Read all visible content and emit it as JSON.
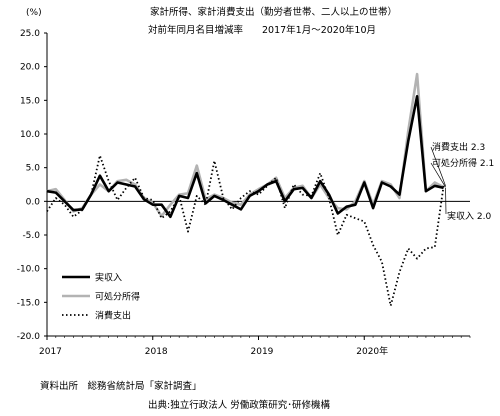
{
  "chart_data": {
    "type": "line",
    "title": "家計所得、家計消費支出（勤労者世帯、二人以上の世帯）",
    "subtitle": "対前年同月名目増減率　　2017年1月～2020年10月",
    "ylabel": "(%)",
    "ylim": [
      -20,
      25
    ],
    "yticks": [
      "25.0",
      "20.0",
      "15.0",
      "10.0",
      "5.0",
      "0.0",
      "-5.0",
      "-10.0",
      "-15.0",
      "-20.0"
    ],
    "xticks": [
      "2017",
      "2018",
      "2019",
      "2020年"
    ],
    "grid": false,
    "legend_position": "bottom-left",
    "x": [
      "2017-01",
      "2017-02",
      "2017-03",
      "2017-04",
      "2017-05",
      "2017-06",
      "2017-07",
      "2017-08",
      "2017-09",
      "2017-10",
      "2017-11",
      "2017-12",
      "2018-01",
      "2018-02",
      "2018-03",
      "2018-04",
      "2018-05",
      "2018-06",
      "2018-07",
      "2018-08",
      "2018-09",
      "2018-10",
      "2018-11",
      "2018-12",
      "2019-01",
      "2019-02",
      "2019-03",
      "2019-04",
      "2019-05",
      "2019-06",
      "2019-07",
      "2019-08",
      "2019-09",
      "2019-10",
      "2019-11",
      "2019-12",
      "2020-01",
      "2020-02",
      "2020-03",
      "2020-04",
      "2020-05",
      "2020-06",
      "2020-07",
      "2020-08",
      "2020-09",
      "2020-10"
    ],
    "series": [
      {
        "name": "実収入",
        "style": "solid-black",
        "values": [
          1.5,
          1.3,
          0.0,
          -1.3,
          -1.2,
          1.0,
          3.8,
          1.5,
          2.8,
          2.5,
          2.2,
          0.3,
          -0.5,
          -0.5,
          -2.3,
          0.8,
          0.5,
          4.2,
          -0.3,
          0.8,
          0.2,
          -0.5,
          -1.2,
          0.8,
          1.5,
          2.5,
          3.0,
          0.0,
          1.8,
          2.0,
          0.5,
          3.0,
          1.0,
          -1.8,
          -0.8,
          -0.5,
          2.8,
          -1.0,
          2.8,
          2.2,
          1.0,
          9.0,
          15.6,
          1.5,
          2.3,
          2.0
        ]
      },
      {
        "name": "可処分所得",
        "style": "solid-gray",
        "values": [
          1.5,
          1.8,
          0.2,
          -1.5,
          -1.0,
          1.0,
          2.5,
          1.5,
          3.0,
          3.2,
          2.5,
          0.5,
          -0.2,
          -2.2,
          -0.5,
          1.0,
          1.2,
          5.3,
          0.3,
          1.0,
          0.5,
          -0.2,
          -0.5,
          1.0,
          1.8,
          2.5,
          3.5,
          0.5,
          2.0,
          2.3,
          0.5,
          2.5,
          0.5,
          -1.0,
          -1.2,
          0.0,
          3.0,
          -0.5,
          3.0,
          2.5,
          0.5,
          10.5,
          18.9,
          1.5,
          2.8,
          2.1
        ]
      },
      {
        "name": "消費支出",
        "style": "dotted-black",
        "values": [
          -1.5,
          0.5,
          -0.5,
          -2.3,
          -1.3,
          1.0,
          6.8,
          3.0,
          0.2,
          2.0,
          3.5,
          0.5,
          0.2,
          -2.5,
          -1.5,
          0.8,
          -4.5,
          0.8,
          -0.5,
          6.0,
          0.5,
          -1.2,
          0.5,
          1.5,
          1.0,
          2.3,
          3.5,
          -1.0,
          2.5,
          1.0,
          0.8,
          4.2,
          0.5,
          -5.0,
          -2.0,
          -2.5,
          -3.0,
          -6.5,
          -9.0,
          -15.5,
          -10.5,
          -7.0,
          -8.5,
          -7.0,
          -6.8,
          2.3
        ]
      }
    ],
    "annotations": [
      "消費支出 2.3",
      "可処分所得 2.1",
      "実収入 2.0"
    ]
  },
  "footer": {
    "source": "資料出所　総務省統計局「家計調査」",
    "credit": "出典:独立行政法人 労働政策研究･研修機構"
  }
}
